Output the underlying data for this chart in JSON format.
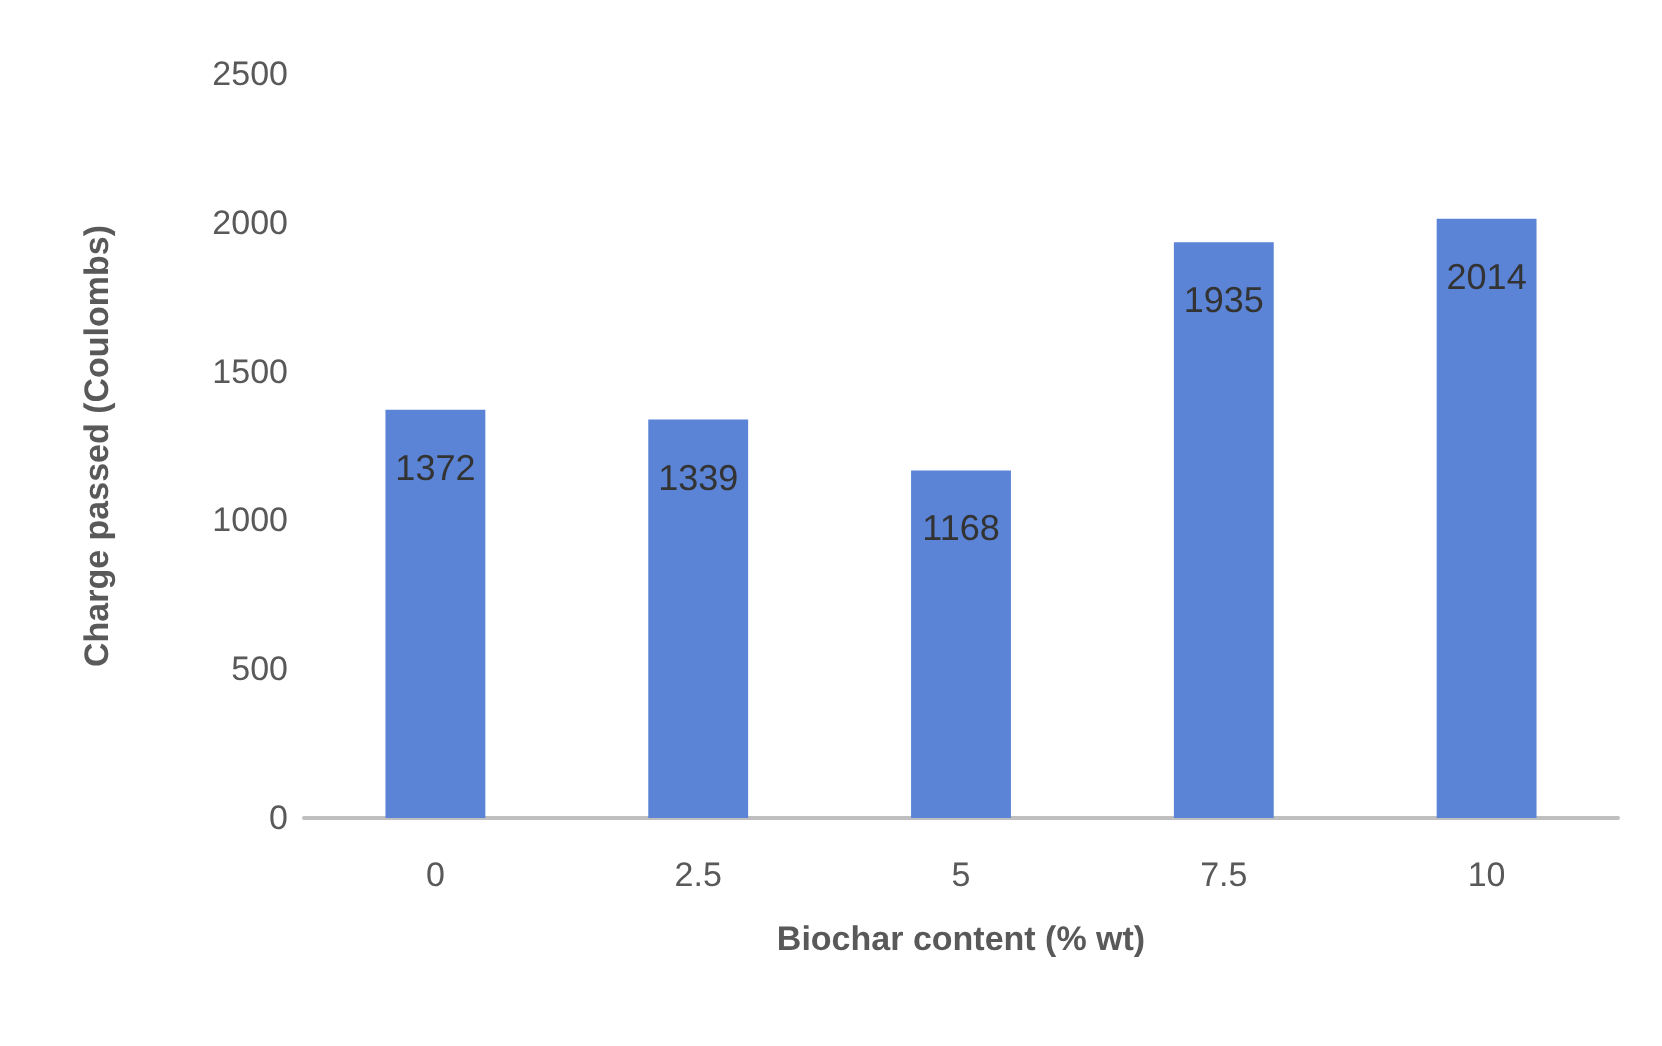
{
  "chart_data": {
    "type": "bar",
    "xlabel": "Biochar content (% wt)",
    "ylabel": "Charge passed (Coulombs)",
    "categories": [
      "0",
      "2.5",
      "5",
      "7.5",
      "10"
    ],
    "values": [
      1372,
      1339,
      1168,
      1935,
      2014
    ],
    "color": "#5b84d6",
    "ylim": [
      0,
      2500
    ],
    "yticks": [
      0,
      500,
      1000,
      1500,
      2000,
      2500
    ],
    "grid": false,
    "data_labels": true
  }
}
